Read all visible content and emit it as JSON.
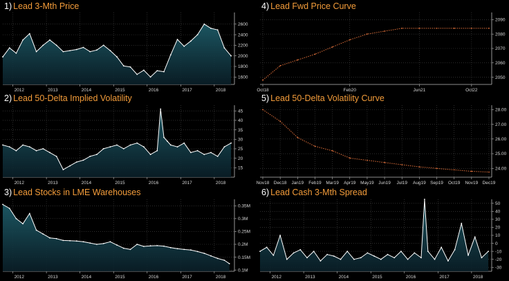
{
  "colors": {
    "background": "#000000",
    "title_number": "#ffffff",
    "title_text": "#f39c3a",
    "line": "#ffffff",
    "fill_top": "#1d5a66",
    "fill_bottom": "#0a1f28",
    "curve": "#e0703a",
    "grid": "#4a4a4a",
    "axis": "#bdbdbd",
    "tick_label": "#d8d8d8"
  },
  "chart_data": [
    {
      "id": 1,
      "number": "1)",
      "title": "Lead 3-Mth Price",
      "type": "area",
      "x": [
        2011.7,
        2011.9,
        2012.1,
        2012.3,
        2012.5,
        2012.7,
        2012.9,
        2013.1,
        2013.3,
        2013.5,
        2013.7,
        2013.9,
        2014.1,
        2014.3,
        2014.5,
        2014.7,
        2014.9,
        2015.1,
        2015.3,
        2015.5,
        2015.7,
        2015.9,
        2016.1,
        2016.3,
        2016.5,
        2016.7,
        2016.9,
        2017.1,
        2017.3,
        2017.5,
        2017.7,
        2017.9,
        2018.1,
        2018.3,
        2018.5
      ],
      "y": [
        1980,
        2150,
        2050,
        2300,
        2420,
        2080,
        2200,
        2300,
        2200,
        2080,
        2100,
        2120,
        2160,
        2080,
        2110,
        2200,
        2100,
        1980,
        1810,
        1790,
        1650,
        1730,
        1600,
        1720,
        1700,
        2020,
        2310,
        2180,
        2280,
        2400,
        2600,
        2520,
        2490,
        2150,
        2000
      ],
      "xticks": [
        2012,
        2013,
        2014,
        2015,
        2016,
        2017,
        2018
      ],
      "yticks": [
        1600,
        1800,
        2000,
        2200,
        2400,
        2600
      ],
      "xlim": [
        2011.7,
        2018.6
      ],
      "ylim": [
        1460,
        2820
      ]
    },
    {
      "id": 4,
      "number": "4)",
      "title": "Lead Fwd Price Curve",
      "type": "line",
      "x": [
        "Oct18",
        "Dec18",
        "Mar19",
        "Jun19",
        "Sep19",
        "Feb20",
        "Jun20",
        "Oct20",
        "Mar21",
        "Jun21",
        "Dec21",
        "Jun22",
        "Oct22",
        "Mar23"
      ],
      "y": [
        2048,
        2058,
        2062,
        2066,
        2071,
        2076,
        2080,
        2082,
        2084,
        2084,
        2084,
        2084,
        2084,
        2084
      ],
      "xticks": [
        "Oct18",
        "Feb20",
        "Jun21",
        "Oct22"
      ],
      "yticks": [
        2050,
        2060,
        2070,
        2080,
        2090
      ],
      "ylim": [
        2045,
        2095
      ]
    },
    {
      "id": 2,
      "number": "2)",
      "title": "Lead 50-Delta Implied Volatility",
      "type": "area",
      "x": [
        2011.7,
        2011.9,
        2012.1,
        2012.3,
        2012.5,
        2012.7,
        2012.9,
        2013.1,
        2013.3,
        2013.5,
        2013.7,
        2013.9,
        2014.1,
        2014.3,
        2014.5,
        2014.7,
        2014.9,
        2015.1,
        2015.3,
        2015.5,
        2015.7,
        2015.9,
        2016.1,
        2016.3,
        2016.4,
        2016.5,
        2016.6,
        2016.7,
        2016.9,
        2017.1,
        2017.3,
        2017.5,
        2017.7,
        2017.9,
        2018.1,
        2018.3,
        2018.5
      ],
      "y": [
        27,
        26,
        24,
        27,
        26,
        24,
        25,
        23,
        21,
        14,
        16,
        18,
        19,
        21,
        22,
        25,
        26,
        27,
        25,
        27,
        28,
        26,
        22,
        24,
        46,
        31,
        29,
        27,
        26,
        28,
        23,
        24,
        22,
        23,
        21,
        26,
        28
      ],
      "xticks": [
        2012,
        2013,
        2014,
        2015,
        2016,
        2017,
        2018
      ],
      "yticks": [
        15,
        20,
        25,
        30,
        35,
        40,
        45
      ],
      "xlim": [
        2011.7,
        2018.6
      ],
      "ylim": [
        10,
        48
      ]
    },
    {
      "id": 5,
      "number": "5)",
      "title": "Lead 50-Delta Volatility Curve",
      "type": "line",
      "x": [
        "Nov18",
        "Dec18",
        "Jan19",
        "Feb19",
        "Mar19",
        "Apr19",
        "May19",
        "Jun19",
        "Jul19",
        "Aug19",
        "Sep19",
        "Oct19",
        "Nov19",
        "Dec19"
      ],
      "y": [
        28.0,
        27.2,
        26.1,
        25.5,
        25.2,
        24.7,
        24.55,
        24.4,
        24.25,
        24.1,
        24.0,
        23.9,
        23.8,
        23.75
      ],
      "xticks": [
        "Nov18",
        "Dec18",
        "Jan19",
        "Feb19",
        "Mar19",
        "Apr19",
        "May19",
        "Jun19",
        "Jul19",
        "Aug19",
        "Sep19",
        "Oct19",
        "Nov19",
        "Dec19"
      ],
      "yticks": [
        24.0,
        25.0,
        26.0,
        27.0,
        28.0
      ],
      "ylim": [
        23.4,
        28.3
      ]
    },
    {
      "id": 3,
      "number": "3)",
      "title": "Lead Stocks in LME Warehouses",
      "type": "area",
      "x": [
        2011.7,
        2011.9,
        2012.1,
        2012.3,
        2012.5,
        2012.7,
        2012.9,
        2013.1,
        2013.3,
        2013.5,
        2013.7,
        2013.9,
        2014.1,
        2014.3,
        2014.5,
        2014.7,
        2014.9,
        2015.1,
        2015.3,
        2015.5,
        2015.7,
        2015.9,
        2016.1,
        2016.3,
        2016.5,
        2016.7,
        2016.9,
        2017.1,
        2017.3,
        2017.5,
        2017.7,
        2017.9,
        2018.1,
        2018.3,
        2018.45
      ],
      "y": [
        355000,
        340000,
        300000,
        280000,
        320000,
        255000,
        240000,
        225000,
        222000,
        215000,
        214000,
        213000,
        210000,
        205000,
        200000,
        203000,
        210000,
        197000,
        185000,
        180000,
        200000,
        192000,
        194000,
        195000,
        193000,
        187000,
        183000,
        180000,
        178000,
        172000,
        165000,
        155000,
        145000,
        138000,
        125000
      ],
      "xticks": [
        2012,
        2013,
        2014,
        2015,
        2016,
        2017,
        2018
      ],
      "yticks": [
        "0.1M",
        "0.15M",
        "0.2M",
        "0.25M",
        "0.3M",
        "0.35M"
      ],
      "ytick_values": [
        100000,
        150000,
        200000,
        250000,
        300000,
        350000
      ],
      "xlim": [
        2011.7,
        2018.6
      ],
      "ylim": [
        95000,
        375000
      ]
    },
    {
      "id": 6,
      "number": "6)",
      "title": "Lead Cash 3-Mth Spread",
      "type": "area",
      "x": [
        2011.7,
        2011.9,
        2012.1,
        2012.3,
        2012.5,
        2012.7,
        2012.9,
        2013.1,
        2013.3,
        2013.5,
        2013.7,
        2013.9,
        2014.1,
        2014.3,
        2014.5,
        2014.7,
        2014.9,
        2015.1,
        2015.3,
        2015.5,
        2015.7,
        2015.9,
        2016.1,
        2016.3,
        2016.5,
        2016.6,
        2016.7,
        2016.9,
        2017.1,
        2017.3,
        2017.5,
        2017.7,
        2017.9,
        2018.1,
        2018.3,
        2018.5
      ],
      "y": [
        -10,
        -5,
        -15,
        10,
        -20,
        -12,
        -8,
        -18,
        -10,
        -22,
        -14,
        -16,
        -20,
        -10,
        -20,
        -18,
        -12,
        -16,
        -20,
        -14,
        -18,
        -10,
        -20,
        -12,
        -18,
        55,
        -10,
        -20,
        -5,
        -22,
        -8,
        25,
        -15,
        8,
        -18,
        -10
      ],
      "xticks": [
        2012,
        2013,
        2014,
        2015,
        2016,
        2017,
        2018
      ],
      "yticks": [
        -30,
        -20,
        -10,
        0,
        10,
        20,
        30,
        40,
        50
      ],
      "xlim": [
        2011.7,
        2018.6
      ],
      "ylim": [
        -35,
        55
      ]
    }
  ]
}
